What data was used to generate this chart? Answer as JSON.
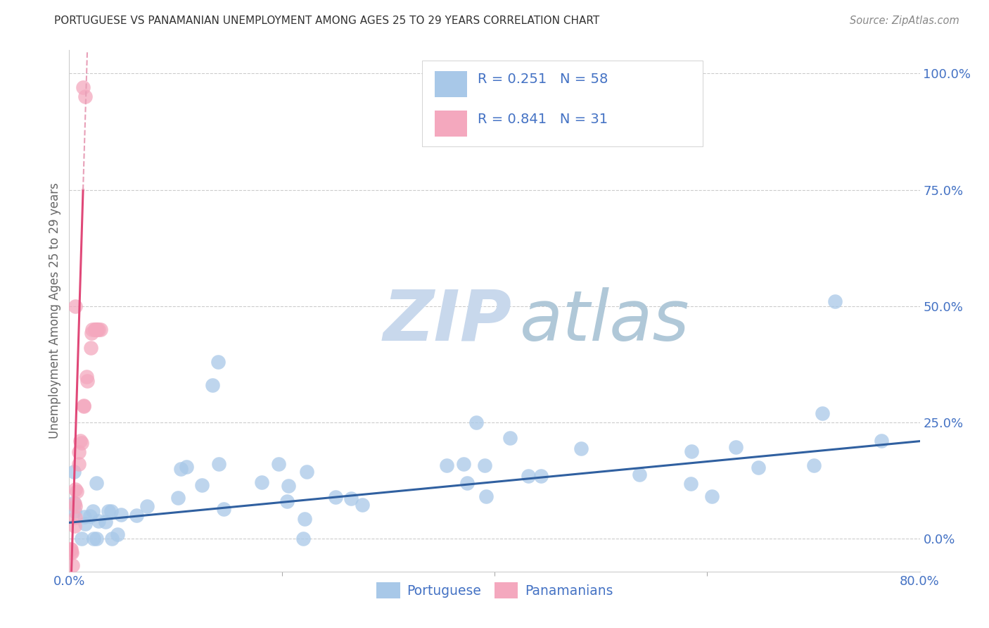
{
  "title": "PORTUGUESE VS PANAMANIAN UNEMPLOYMENT AMONG AGES 25 TO 29 YEARS CORRELATION CHART",
  "source": "Source: ZipAtlas.com",
  "ylabel_label": "Unemployment Among Ages 25 to 29 years",
  "right_ytick_vals": [
    0.0,
    0.25,
    0.5,
    0.75,
    1.0
  ],
  "right_ytick_labels": [
    "0.0%",
    "25.0%",
    "50.0%",
    "75.0%",
    "100.0%"
  ],
  "blue_R": 0.251,
  "blue_N": 58,
  "pink_R": 0.841,
  "pink_N": 31,
  "blue_color": "#A8C8E8",
  "pink_color": "#F4A8BE",
  "blue_line_color": "#3060A0",
  "pink_line_color": "#E04878",
  "pink_line_dashed_color": "#E8A0B8",
  "watermark_zip_color": "#C8D8EC",
  "watermark_atlas_color": "#B0C8D8",
  "legend_title_blue": "Portuguese",
  "legend_title_pink": "Panamanians",
  "xlim": [
    0.0,
    0.8
  ],
  "ylim": [
    -0.07,
    1.05
  ],
  "xtick_vals": [
    0.0,
    0.8
  ],
  "xtick_labels": [
    "0.0%",
    "80.0%"
  ],
  "grid_color": "#CCCCCC",
  "tick_color": "#4472C4",
  "label_color": "#4472C4",
  "background_color": "#FFFFFF",
  "title_color": "#333333",
  "source_color": "#888888",
  "ylabel_color": "#666666"
}
